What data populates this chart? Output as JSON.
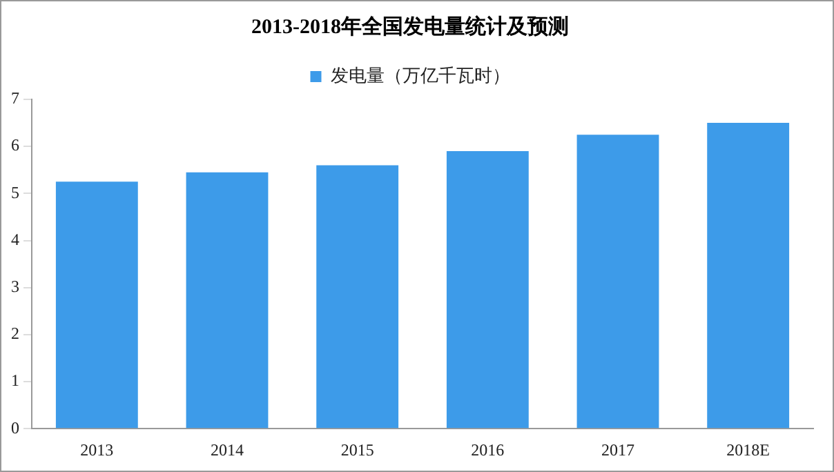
{
  "chart_data": {
    "type": "bar",
    "title": "2013-2018年全国发电量统计及预测",
    "categories": [
      "2013",
      "2014",
      "2015",
      "2016",
      "2017",
      "2018E"
    ],
    "series": [
      {
        "name": "发电量（万亿千瓦时）",
        "color": "#3d9be9",
        "values": [
          5.25,
          5.45,
          5.6,
          5.9,
          6.25,
          6.5
        ]
      }
    ],
    "ylim": [
      0,
      7
    ],
    "yticks": [
      0,
      1,
      2,
      3,
      4,
      5,
      6,
      7
    ],
    "grid": false,
    "legend": "top"
  }
}
